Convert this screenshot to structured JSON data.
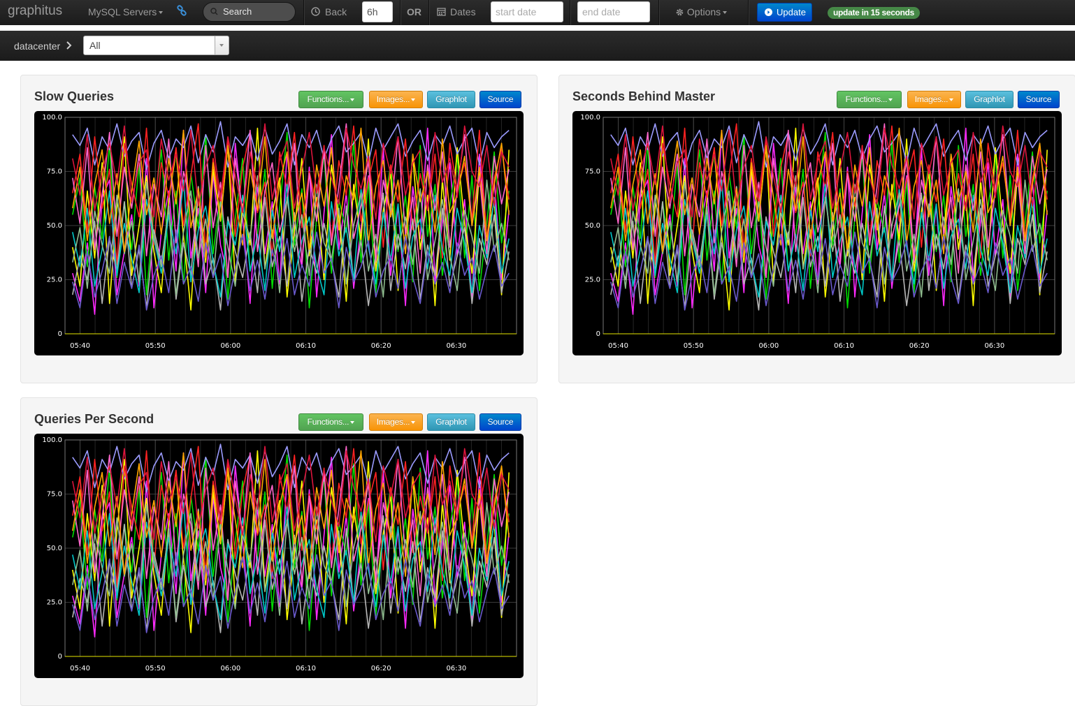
{
  "navbar": {
    "brand": "graphitus",
    "dashboard_menu": "MySQL Servers",
    "search_label": "Search",
    "back_label": "Back",
    "timeframe_value": "6h",
    "or_label": "OR",
    "dates_label": "Dates",
    "start_date_placeholder": "start date",
    "end_date_placeholder": "end date",
    "options_label": "Options",
    "update_label": "Update",
    "auto_refresh_badge": "update in 15 seconds",
    "icons": [
      "link-icon",
      "search-icon",
      "clock-icon",
      "calendar-icon",
      "gear-icon",
      "refresh-circle-icon"
    ]
  },
  "params": {
    "label": "datacenter",
    "selected": "All"
  },
  "panel_buttons": {
    "functions": "Functions...",
    "images": "Images...",
    "graphlot": "Graphlot",
    "source": "Source"
  },
  "colors": {
    "functions": "#51a351",
    "images": "#f89406",
    "graphlot": "#2f96b4",
    "source": "#0044cc",
    "update": "#0044cc",
    "badge": "#468847"
  },
  "panels": [
    {
      "title": "Slow Queries"
    },
    {
      "title": "Seconds Behind Master"
    },
    {
      "title": "Queries Per Second"
    }
  ],
  "chart_data": {
    "type": "line",
    "y_tick_labels": [
      "100.0",
      "75.0",
      "50.0",
      "25.0",
      "0"
    ],
    "ylim": [
      0,
      100
    ],
    "x_tick_labels": [
      "05:40",
      "05:50",
      "06:00",
      "06:10",
      "06:20",
      "06:30"
    ],
    "xlim": [
      "05:38",
      "06:38"
    ],
    "grid": true,
    "legend": "none",
    "series_colors": [
      "#ff2aff",
      "#00dd00",
      "#ffff00",
      "#9b9bff",
      "#ff2222",
      "#b5b5b5",
      "#00c8c8",
      "#ff66cc",
      "#8fbc8f",
      "#ffa500",
      "#6a5acd",
      "#dc143c"
    ],
    "series": [
      {
        "values": [
          28,
          15,
          42,
          9,
          63,
          71,
          18,
          38,
          55,
          22,
          81,
          12,
          47,
          66,
          29,
          94,
          35,
          58,
          19,
          74,
          41,
          26,
          88,
          53,
          14,
          69,
          37,
          61,
          23,
          84,
          46,
          31,
          77,
          17,
          56,
          92,
          39,
          65,
          21,
          49,
          73,
          33,
          86,
          27,
          59,
          13,
          68,
          44,
          95,
          24,
          52,
          79,
          36,
          62,
          16,
          83,
          43,
          71,
          25,
          57
        ]
      },
      {
        "values": [
          55,
          72,
          31,
          68,
          44,
          88,
          26,
          61,
          39,
          79,
          18,
          57,
          85,
          34,
          66,
          23,
          74,
          49,
          92,
          37,
          64,
          16,
          53,
          81,
          29,
          46,
          76,
          21,
          58,
          93,
          41,
          67,
          12,
          54,
          83,
          28,
          62,
          47,
          89,
          33,
          71,
          19,
          56,
          78,
          38,
          64,
          24,
          87,
          45,
          69,
          27,
          59,
          82,
          35,
          73,
          20,
          51,
          84,
          42,
          66
        ]
      },
      {
        "values": [
          40,
          22,
          66,
          35,
          79,
          14,
          58,
          91,
          27,
          50,
          73,
          38,
          19,
          62,
          84,
          45,
          11,
          68,
          33,
          76,
          52,
          87,
          24,
          60,
          41,
          95,
          30,
          56,
          72,
          17,
          48,
          81,
          36,
          63,
          25,
          78,
          54,
          15,
          69,
          43,
          90,
          29,
          57,
          74,
          20,
          46,
          82,
          39,
          64,
          13,
          71,
          34,
          86,
          51,
          28,
          75,
          44,
          61,
          18,
          85
        ]
      },
      {
        "values": [
          92,
          87,
          95,
          78,
          91,
          85,
          97,
          82,
          89,
          93,
          76,
          88,
          94,
          81,
          90,
          86,
          96,
          79,
          92,
          84,
          98,
          77,
          91,
          87,
          93,
          80,
          95,
          83,
          89,
          97,
          78,
          92,
          86,
          94,
          81,
          90,
          96,
          84,
          88,
          93,
          79,
          95,
          85,
          91,
          97,
          82,
          89,
          94,
          80,
          92,
          87,
          96,
          83,
          90,
          95,
          78,
          93,
          86,
          91,
          94
        ]
      },
      {
        "values": [
          65,
          83,
          47,
          91,
          58,
          76,
          32,
          88,
          69,
          54,
          95,
          41,
          79,
          63,
          86,
          50,
          73,
          97,
          38,
          81,
          60,
          89,
          45,
          77,
          92,
          56,
          70,
          36,
          84,
          67,
          93,
          49,
          75,
          59,
          87,
          43,
          80,
          64,
          96,
          52,
          71,
          85,
          40,
          78,
          61,
          90,
          48,
          74,
          57,
          83,
          35,
          88,
          66,
          79,
          53,
          94,
          44,
          72,
          86,
          62
        ]
      },
      {
        "values": [
          18,
          36,
          25,
          52,
          14,
          44,
          29,
          61,
          21,
          39,
          12,
          48,
          33,
          57,
          16,
          42,
          27,
          68,
          23,
          35,
          11,
          54,
          38,
          26,
          47,
          19,
          63,
          31,
          45,
          22,
          56,
          15,
          40,
          28,
          51,
          34,
          17,
          59,
          24,
          43,
          13,
          37,
          65,
          20,
          46,
          30,
          53,
          16,
          41,
          27,
          58,
          22,
          36,
          49,
          14,
          44,
          32,
          55,
          19,
          38
        ]
      },
      {
        "values": [
          47,
          31,
          58,
          22,
          39,
          66,
          27,
          51,
          35,
          19,
          62,
          44,
          28,
          55,
          37,
          71,
          24,
          48,
          59,
          33,
          17,
          52,
          41,
          64,
          29,
          46,
          20,
          57,
          38,
          69,
          26,
          43,
          54,
          31,
          18,
          61,
          36,
          49,
          25,
          67,
          40,
          23,
          56,
          34,
          60,
          21,
          45,
          53,
          30,
          64,
          39,
          27,
          58,
          42,
          19,
          50,
          35,
          63,
          28,
          44
        ]
      },
      {
        "values": [
          72,
          51,
          86,
          39,
          64,
          93,
          45,
          77,
          58,
          83,
          36,
          69,
          54,
          90,
          42,
          75,
          61,
          31,
          87,
          49,
          70,
          26,
          81,
          56,
          94,
          38,
          66,
          79,
          47,
          62,
          88,
          33,
          74,
          52,
          85,
          41,
          68,
          97,
          44,
          59,
          80,
          35,
          71,
          55,
          91,
          46,
          63,
          28,
          78,
          57,
          84,
          40,
          67,
          92,
          50,
          73,
          37,
          82,
          60,
          76
        ]
      },
      {
        "values": [
          33,
          49,
          21,
          57,
          41,
          28,
          64,
          37,
          52,
          24,
          70,
          45,
          31,
          59,
          18,
          47,
          66,
          35,
          53,
          26,
          61,
          40,
          22,
          56,
          44,
          73,
          30,
          48,
          19,
          63,
          38,
          55,
          27,
          69,
          42,
          34,
          58,
          23,
          50,
          65,
          29,
          46,
          17,
          60,
          39,
          54,
          32,
          67,
          25,
          43,
          62,
          36,
          20,
          57,
          45,
          28,
          71,
          38,
          51,
          34
        ]
      },
      {
        "values": [
          58,
          77,
          43,
          69,
          85,
          51,
          74,
          38,
          66,
          89,
          55,
          72,
          46,
          81,
          60,
          94,
          49,
          67,
          35,
          79,
          53,
          87,
          63,
          41,
          76,
          57,
          91,
          44,
          70,
          84,
          52,
          65,
          39,
          78,
          59,
          86,
          48,
          73,
          62,
          95,
          42,
          68,
          80,
          54,
          71,
          37,
          83,
          61,
          75,
          47,
          90,
          56,
          64,
          82,
          50,
          77,
          43,
          69,
          88,
          55
        ]
      },
      {
        "values": [
          24,
          12,
          38,
          17,
          29,
          45,
          14,
          33,
          21,
          41,
          11,
          27,
          36,
          19,
          48,
          23,
          31,
          15,
          42,
          26,
          37,
          13,
          30,
          46,
          20,
          34,
          16,
          39,
          25,
          44,
          18,
          32,
          22,
          47,
          28,
          35,
          12,
          40,
          24,
          31,
          43,
          17,
          29,
          36,
          21,
          45,
          26,
          14,
          38,
          23,
          33,
          19,
          42,
          27,
          35,
          16,
          30,
          41,
          22,
          28
        ]
      },
      {
        "values": [
          81,
          64,
          92,
          57,
          75,
          88,
          69,
          96,
          61,
          79,
          85,
          54,
          90,
          71,
          83,
          66,
          94,
          59,
          77,
          87,
          63,
          91,
          73,
          56,
          84,
          68,
          97,
          62,
          80,
          89,
          58,
          76,
          93,
          65,
          86,
          72,
          60,
          95,
          78,
          67,
          82,
          53,
          88,
          74,
          91,
          64,
          79,
          85,
          57,
          93,
          70,
          81,
          63,
          96,
          75,
          68,
          87,
          59,
          84,
          77
        ]
      }
    ]
  }
}
